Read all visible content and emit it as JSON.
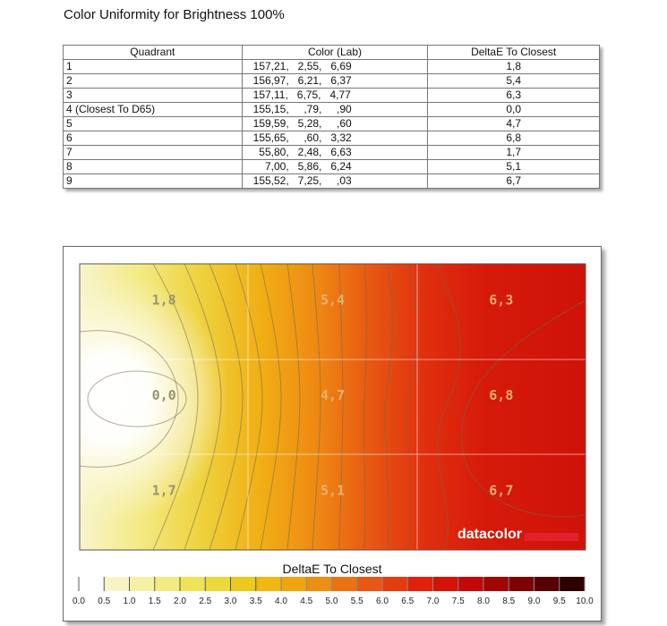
{
  "page": {
    "title": "Color Uniformity for Brightness 100%"
  },
  "table": {
    "headers": [
      "Quadrant",
      "Color (Lab)",
      "DeltaE To Closest"
    ],
    "rows": [
      {
        "quadrant": "1",
        "lab": "157,21,   2,55,   6,69",
        "deltae": "1,8"
      },
      {
        "quadrant": "2",
        "lab": "156,97,   6,21,   6,37",
        "deltae": "5,4"
      },
      {
        "quadrant": "3",
        "lab": "157,11,   6,75,   4,77",
        "deltae": "6,3"
      },
      {
        "quadrant": "4 (Closest To D65)",
        "lab": "155,15,     ,79,     ,90",
        "deltae": "0,0"
      },
      {
        "quadrant": "5",
        "lab": "159,59,   5,28,     ,60",
        "deltae": "4,7"
      },
      {
        "quadrant": "6",
        "lab": "155,65,     ,60,   3,32",
        "deltae": "6,8"
      },
      {
        "quadrant": "7",
        "lab": "  55,80,   2,48,   6,63",
        "deltae": "1,7"
      },
      {
        "quadrant": "8",
        "lab": "    7,00,   5,86,   6,24",
        "deltae": "5,1"
      },
      {
        "quadrant": "9",
        "lab": "155,52,   7,25,     ,03",
        "deltae": "6,7"
      }
    ]
  },
  "chart_data": {
    "type": "heatmap",
    "grid": {
      "rows": 3,
      "cols": 3
    },
    "cells": [
      {
        "row": 0,
        "col": 0,
        "value": 1.8,
        "label": "1,8"
      },
      {
        "row": 0,
        "col": 1,
        "value": 5.4,
        "label": "5,4"
      },
      {
        "row": 0,
        "col": 2,
        "value": 6.3,
        "label": "6,3"
      },
      {
        "row": 1,
        "col": 0,
        "value": 0.0,
        "label": "0,0"
      },
      {
        "row": 1,
        "col": 1,
        "value": 4.7,
        "label": "4,7"
      },
      {
        "row": 1,
        "col": 2,
        "value": 6.8,
        "label": "6,8"
      },
      {
        "row": 2,
        "col": 0,
        "value": 1.7,
        "label": "1,7"
      },
      {
        "row": 2,
        "col": 1,
        "value": 5.1,
        "label": "5,1"
      },
      {
        "row": 2,
        "col": 2,
        "value": 6.7,
        "label": "6,7"
      }
    ],
    "scale": {
      "title": "DeltaE To Closest",
      "min": 0,
      "max": 10,
      "step": 0.5,
      "ticks": [
        "0.0",
        "0.5",
        "1.0",
        "1.5",
        "2.0",
        "2.5",
        "3.0",
        "3.5",
        "4.0",
        "4.5",
        "5.0",
        "5.5",
        "6.0",
        "6.5",
        "7.0",
        "7.5",
        "8.0",
        "8.5",
        "9.0",
        "9.5",
        "10.0"
      ],
      "colors": [
        "#ffffff",
        "#f7f5c6",
        "#f5f0a4",
        "#f3eb80",
        "#efe35a",
        "#ecd83c",
        "#ecc91c",
        "#f0b812",
        "#f0a412",
        "#ee8e12",
        "#eb7212",
        "#e85812",
        "#e53c0f",
        "#e0220c",
        "#d41208",
        "#c20808",
        "#a30505",
        "#7d0303",
        "#560202",
        "#2d0101"
      ]
    },
    "brand": "datacolor",
    "brand_color": "#e5202e"
  }
}
